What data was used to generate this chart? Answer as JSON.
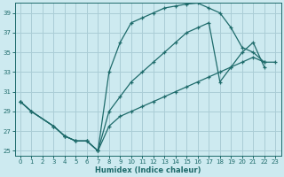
{
  "xlabel": "Humidex (Indice chaleur)",
  "bg_color": "#cdeaf0",
  "grid_color": "#aacdd6",
  "line_color": "#1e6b6b",
  "xlim": [
    -0.5,
    23.5
  ],
  "ylim": [
    24.5,
    40.0
  ],
  "yticks": [
    25,
    27,
    29,
    31,
    33,
    35,
    37,
    39
  ],
  "xticks": [
    0,
    1,
    2,
    3,
    4,
    5,
    6,
    7,
    8,
    9,
    10,
    11,
    12,
    13,
    14,
    15,
    16,
    17,
    18,
    19,
    20,
    21,
    22,
    23
  ],
  "font_size_tick": 5,
  "font_size_label": 6,
  "line1_x": [
    0,
    1,
    3,
    4,
    5,
    6,
    7,
    8,
    9,
    10,
    11,
    12,
    13,
    14,
    15,
    16,
    17,
    18,
    19,
    20,
    21,
    22
  ],
  "line1_y": [
    30.0,
    29.0,
    27.5,
    26.5,
    26.0,
    26.0,
    25.0,
    33.0,
    36.0,
    38.0,
    38.5,
    39.0,
    39.5,
    39.7,
    39.9,
    40.0,
    39.5,
    39.0,
    37.5,
    35.5,
    35.0,
    34.0
  ],
  "line2_x": [
    0,
    1,
    3,
    4,
    5,
    6,
    7,
    8,
    9,
    10,
    11,
    12,
    13,
    14,
    15,
    16,
    17,
    18,
    19,
    20,
    21,
    22
  ],
  "line2_y": [
    30.0,
    29.0,
    27.5,
    26.5,
    26.0,
    26.0,
    25.0,
    29.0,
    30.5,
    32.0,
    33.0,
    34.0,
    35.0,
    36.0,
    37.0,
    37.5,
    38.0,
    32.0,
    33.5,
    35.0,
    36.0,
    33.5
  ],
  "line3_x": [
    0,
    1,
    3,
    4,
    5,
    6,
    7,
    8,
    9,
    10,
    11,
    12,
    13,
    14,
    15,
    16,
    17,
    18,
    19,
    20,
    21,
    22,
    23
  ],
  "line3_y": [
    30.0,
    29.0,
    27.5,
    26.5,
    26.0,
    26.0,
    25.0,
    27.5,
    28.5,
    29.0,
    29.5,
    30.0,
    30.5,
    31.0,
    31.5,
    32.0,
    32.5,
    33.0,
    33.5,
    34.0,
    34.5,
    34.0,
    34.0
  ]
}
